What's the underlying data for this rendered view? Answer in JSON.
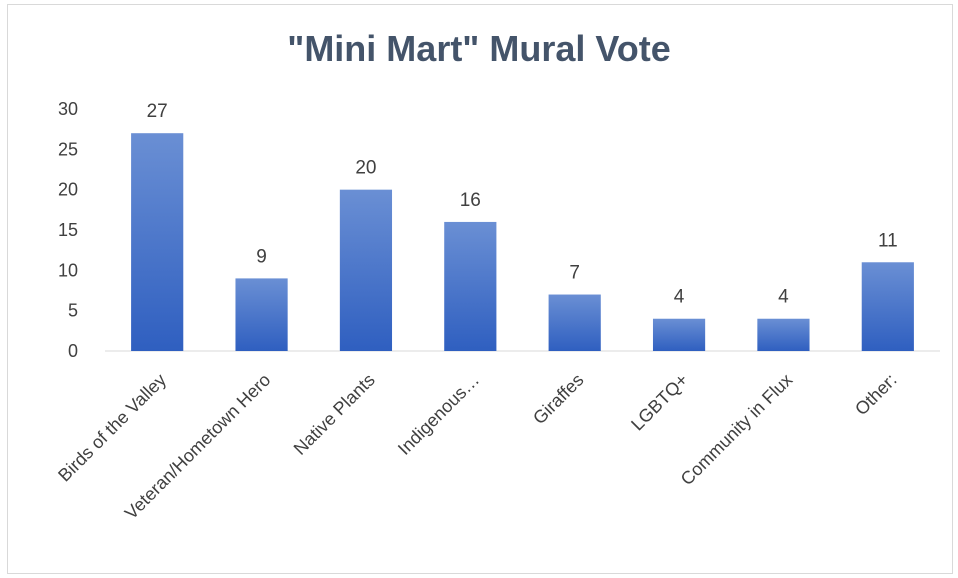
{
  "chart_data": {
    "type": "bar",
    "title": "\"Mini Mart\" Mural Vote",
    "categories": [
      "Birds of the Valley",
      "Veteran/Hometown Hero",
      "Native Plants",
      "Indigenous…",
      "Giraffes",
      "LGBTQ+",
      "Community in Flux",
      "Other:"
    ],
    "values": [
      27,
      9,
      20,
      16,
      7,
      4,
      4,
      11
    ],
    "ylim": [
      0,
      30
    ],
    "yticks": [
      0,
      5,
      10,
      15,
      20,
      25,
      30
    ],
    "xlabel": "",
    "ylabel": "",
    "grid": false,
    "legend": "none",
    "colors": {
      "bar_top": "#6a8fd4",
      "bar_bottom": "#2f5fc0",
      "axis": "#d9d9d9",
      "title": "#44546a",
      "text": "#404040"
    }
  }
}
